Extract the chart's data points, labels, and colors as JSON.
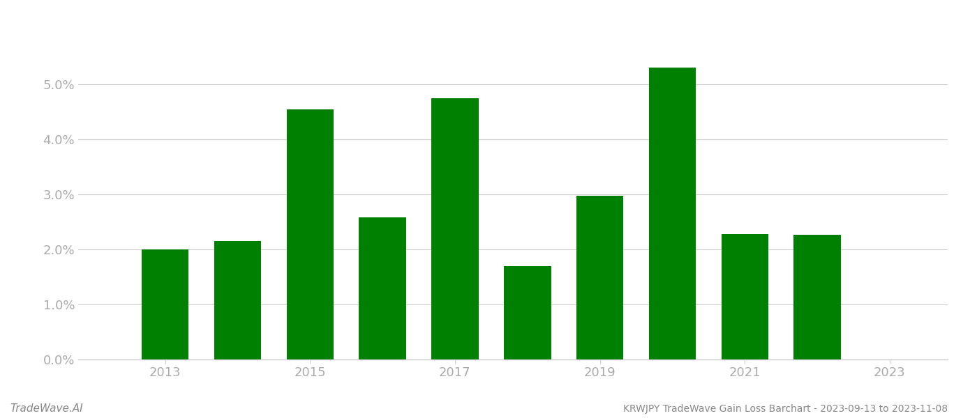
{
  "years": [
    2013,
    2014,
    2015,
    2016,
    2017,
    2018,
    2019,
    2020,
    2021,
    2022
  ],
  "values": [
    0.02,
    0.0215,
    0.0455,
    0.0258,
    0.0475,
    0.017,
    0.0298,
    0.053,
    0.0228,
    0.0226
  ],
  "bar_color": "#008000",
  "background_color": "#ffffff",
  "tick_color": "#aaaaaa",
  "grid_color": "#cccccc",
  "axis_color": "#cccccc",
  "title_text": "KRWJPY TradeWave Gain Loss Barchart - 2023-09-13 to 2023-11-08",
  "watermark_text": "TradeWave.AI",
  "ylim": [
    0,
    0.06
  ],
  "yticks": [
    0.0,
    0.01,
    0.02,
    0.03,
    0.04,
    0.05
  ],
  "xticks": [
    2013,
    2015,
    2017,
    2019,
    2021,
    2023
  ],
  "xlim": [
    2011.8,
    2023.8
  ],
  "bar_width": 0.65
}
